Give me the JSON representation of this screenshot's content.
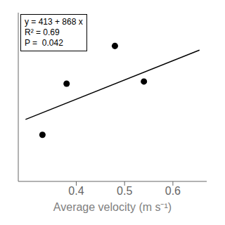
{
  "chart_data": {
    "type": "scatter",
    "xlabel": "Average  velocity  (m s⁻¹)",
    "annotations": [
      "y = 413 + 868 x",
      "R² = 0.69",
      "P =  0.042"
    ],
    "series": [
      {
        "type": "scatter",
        "color": "#000000",
        "x": [
          0.33,
          0.38,
          0.48,
          0.54
        ],
        "values": [
          600,
          830,
          1000,
          840
        ]
      },
      {
        "type": "line",
        "color": "#000000",
        "x": [
          0.295,
          0.655
        ],
        "values": [
          669.06,
          981.54
        ]
      }
    ],
    "xlim": [
      0.28,
      0.67
    ],
    "ylim": [
      390,
      1150
    ],
    "xticks": [
      0.4,
      0.5,
      0.6
    ],
    "tick_labels": "x"
  }
}
